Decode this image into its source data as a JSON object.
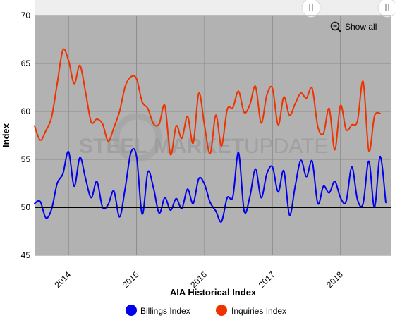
{
  "chart_data": {
    "type": "line",
    "title": "",
    "xlabel": "AIA Historical Index",
    "ylabel": "Index",
    "ylim": [
      45,
      70
    ],
    "xlim": [
      "2013-07",
      "2018-10"
    ],
    "y_ticks": [
      45,
      50,
      55,
      60,
      65,
      70
    ],
    "x_ticks": [
      "2014",
      "2015",
      "2016",
      "2017",
      "2018"
    ],
    "reference_line": 50,
    "grid": true,
    "legend_position": "bottom",
    "x": [
      "2013-07",
      "2013-08",
      "2013-09",
      "2013-10",
      "2013-11",
      "2013-12",
      "2014-01",
      "2014-02",
      "2014-03",
      "2014-04",
      "2014-05",
      "2014-06",
      "2014-07",
      "2014-08",
      "2014-09",
      "2014-10",
      "2014-11",
      "2014-12",
      "2015-01",
      "2015-02",
      "2015-03",
      "2015-04",
      "2015-05",
      "2015-06",
      "2015-07",
      "2015-08",
      "2015-09",
      "2015-10",
      "2015-11",
      "2015-12",
      "2016-01",
      "2016-02",
      "2016-03",
      "2016-04",
      "2016-05",
      "2016-06",
      "2016-07",
      "2016-08",
      "2016-09",
      "2016-10",
      "2016-11",
      "2016-12",
      "2017-01",
      "2017-02",
      "2017-03",
      "2017-04",
      "2017-05",
      "2017-06",
      "2017-07",
      "2017-08",
      "2017-09",
      "2017-10",
      "2017-11",
      "2017-12",
      "2018-01",
      "2018-02",
      "2018-03",
      "2018-04",
      "2018-05",
      "2018-06",
      "2018-07",
      "2018-08",
      "2018-09",
      "2018-10"
    ],
    "series": [
      {
        "name": "Billings Index",
        "color": "#0000ee",
        "values": [
          50.4,
          50.6,
          48.9,
          49.8,
          52.5,
          53.5,
          55.8,
          52.2,
          55.2,
          53.0,
          51.0,
          52.7,
          50.0,
          50.3,
          51.7,
          49.0,
          52.0,
          55.7,
          55.3,
          49.3,
          53.7,
          52.0,
          49.4,
          51.0,
          49.7,
          50.9,
          49.9,
          51.9,
          50.4,
          53.0,
          52.4,
          50.5,
          49.6,
          48.5,
          51.0,
          51.1,
          55.7,
          49.6,
          51.1,
          54.0,
          51.0,
          53.5,
          54.2,
          51.6,
          53.8,
          49.2,
          52.2,
          54.9,
          53.2,
          54.8,
          50.4,
          52.2,
          51.5,
          52.7,
          51.0,
          50.6,
          54.2,
          50.8,
          50.4,
          54.8,
          50.0,
          55.3,
          50.5,
          null
        ]
      },
      {
        "name": "Inquiries Index",
        "color": "#ee3300",
        "values": [
          58.5,
          57.0,
          58.0,
          59.4,
          62.9,
          66.4,
          65.3,
          62.9,
          64.8,
          62.0,
          58.9,
          59.2,
          58.7,
          56.9,
          58.3,
          60.0,
          62.6,
          63.6,
          63.4,
          61.0,
          60.3,
          58.7,
          58.7,
          60.6,
          55.5,
          58.5,
          57.2,
          59.5,
          56.7,
          61.9,
          58.5,
          55.6,
          59.6,
          56.4,
          60.2,
          60.4,
          62.1,
          59.9,
          60.7,
          62.6,
          58.8,
          61.7,
          62.4,
          58.6,
          61.5,
          59.6,
          60.8,
          61.9,
          61.4,
          62.4,
          58.4,
          57.7,
          60.3,
          56.0,
          60.6,
          58.1,
          58.6,
          59.0,
          63.1,
          55.9,
          59.5,
          59.8,
          null,
          null
        ]
      }
    ]
  },
  "legend": [
    {
      "label": "Billings Index",
      "color": "#0000ee"
    },
    {
      "label": "Inquiries Index",
      "color": "#ee3300"
    }
  ],
  "controls": {
    "show_all_label": "Show all"
  },
  "watermark": {
    "word1": "STEEL",
    "word2": "MARKET",
    "word3": "UPDATE"
  },
  "colors": {
    "plot_background": "#b2b2b2",
    "gridline": "#8c8c8c",
    "reference_line": "#000000",
    "navigator": "#eeeeee"
  }
}
